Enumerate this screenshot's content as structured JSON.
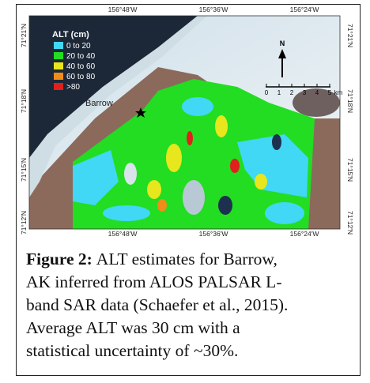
{
  "figure": {
    "coords": {
      "top": [
        "156°48'W",
        "156°36'W",
        "156°24'W"
      ],
      "bottom": [
        "156°48'W",
        "156°36'W",
        "156°24'W"
      ],
      "left": [
        "71°21'N",
        "71°18'N",
        "71°15'N",
        "71°12'N"
      ],
      "right": [
        "71°21'N",
        "71°18'N",
        "71°15'N",
        "71°12'N"
      ]
    },
    "legend": {
      "title": "ALT (cm)",
      "items": [
        {
          "label": "0 to 20",
          "color": "#40d8f4"
        },
        {
          "label": "20 to 40",
          "color": "#22dd22"
        },
        {
          "label": "40 to 60",
          "color": "#e8e61c"
        },
        {
          "label": "60 to 80",
          "color": "#f08c1a"
        },
        {
          "label": ">80",
          "color": "#e0201c"
        }
      ]
    },
    "north": "N",
    "scale": [
      "0",
      "1",
      "2",
      "3",
      "4",
      "5",
      "km"
    ],
    "place": "Barrow"
  },
  "caption": {
    "label": "Figure 2:",
    "lines": [
      "ALT estimates for Barrow,",
      "AK inferred from ALOS PALSAR L-",
      "band SAR data (Schaefer et al., 2015).",
      "Average ALT was 30 cm with a",
      "statistical uncertainty of ~30%."
    ]
  }
}
